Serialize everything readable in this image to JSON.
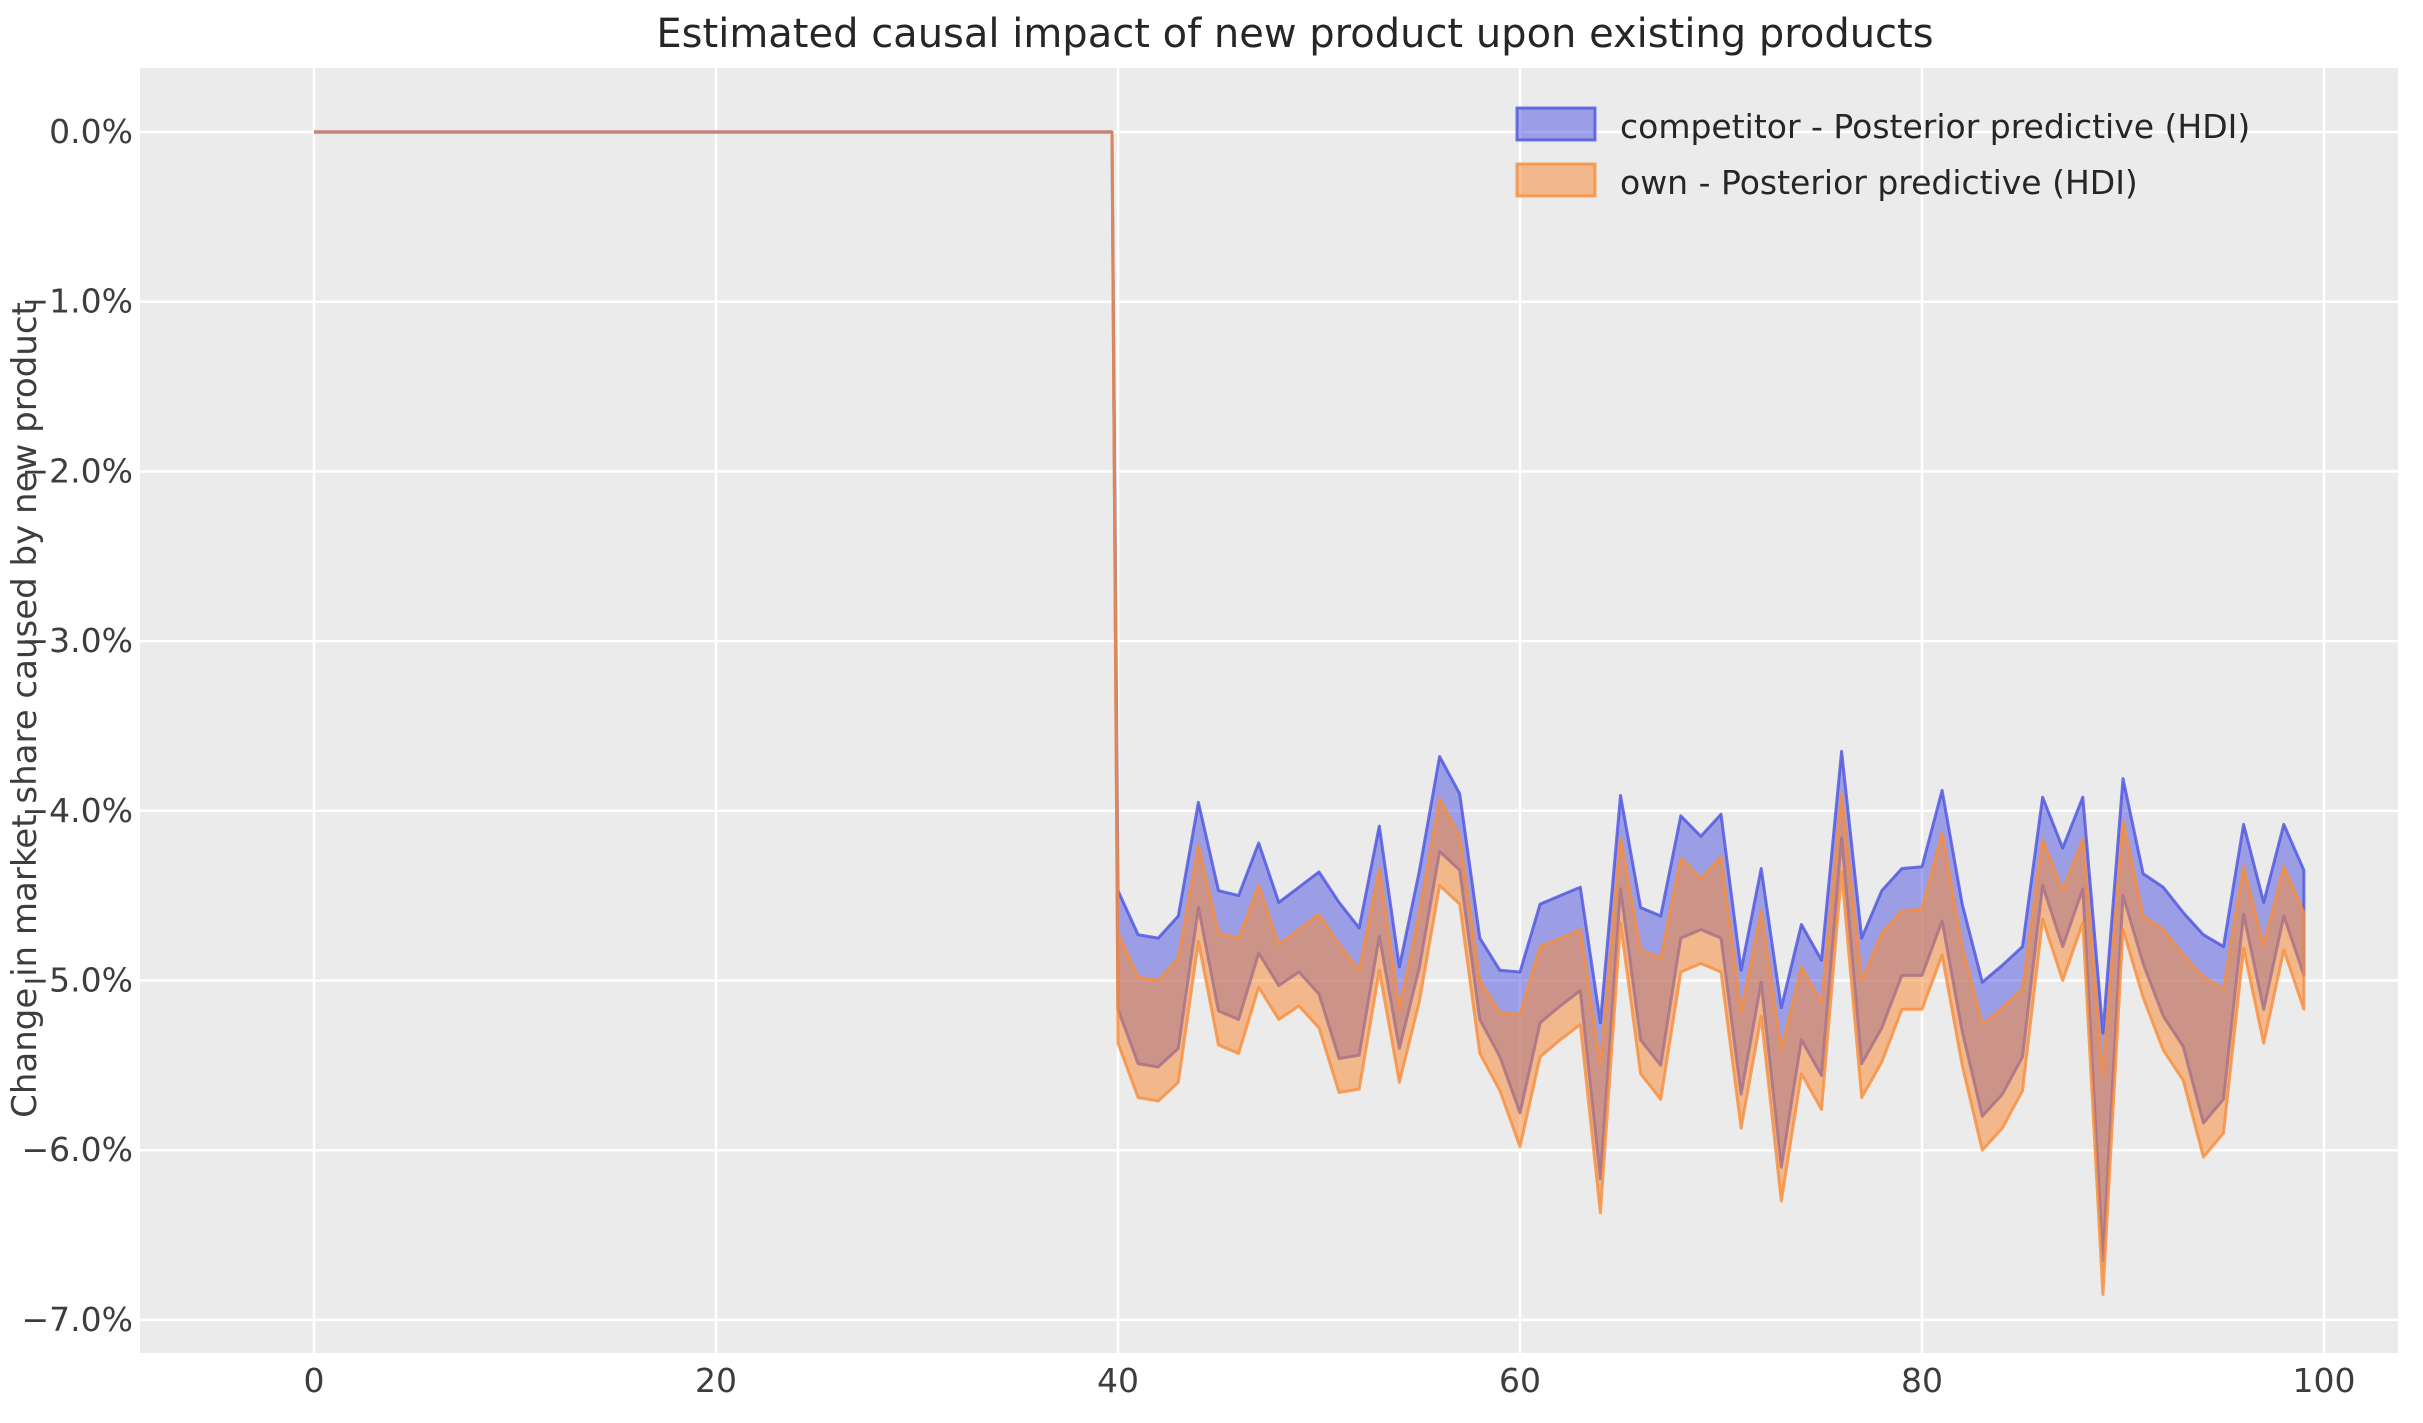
{
  "figure": {
    "background": "#ffffff",
    "plot_background": "#ebebeb",
    "grid_color": "#ffffff",
    "tick_text_color": "#3d3d3d",
    "title_color": "#262626"
  },
  "chart_data": {
    "type": "area",
    "title": "Estimated causal impact of new product upon existing products",
    "xlabel": "",
    "ylabel": "Change in market share caused by new product",
    "grid": true,
    "legend_position": "upper right",
    "xlim": [
      -8.7,
      103.7
    ],
    "ylim": [
      -7.2,
      0.38
    ],
    "xticks": {
      "values": [
        0,
        20,
        40,
        60,
        80,
        100
      ],
      "labels": [
        "0",
        "20",
        "40",
        "60",
        "80",
        "100"
      ]
    },
    "yticks": {
      "values": [
        0,
        -1,
        -2,
        -3,
        -4,
        -5,
        -6,
        -7
      ],
      "labels": [
        "0.0%",
        "−1.0%",
        "−2.0%",
        "−3.0%",
        "−4.0%",
        "−5.0%",
        "−6.0%",
        "−7.0%"
      ]
    },
    "pre_period": {
      "x_start": 0,
      "x_end": 39.7,
      "value": 0,
      "line_color": "#c4837f"
    },
    "x_post": [
      39.7,
      40,
      41,
      42,
      43,
      44,
      45,
      46,
      47,
      48,
      49,
      50,
      51,
      52,
      53,
      54,
      55,
      56,
      57,
      58,
      59,
      60,
      61,
      62,
      63,
      64,
      65,
      66,
      67,
      68,
      69,
      70,
      71,
      72,
      73,
      74,
      75,
      76,
      77,
      78,
      79,
      80,
      81,
      82,
      83,
      84,
      85,
      86,
      87,
      88,
      89,
      90,
      91,
      92,
      93,
      94,
      95,
      96,
      97,
      98,
      99
    ],
    "series": [
      {
        "name": "competitor - Posterior predictive (HDI)",
        "fill": "rgba(76,82,224,0.5)",
        "stroke": "rgba(76,82,224,0.8)",
        "upper": [
          0,
          -4.47,
          -4.73,
          -4.75,
          -4.62,
          -3.95,
          -4.47,
          -4.5,
          -4.19,
          -4.54,
          -4.45,
          -4.36,
          -4.54,
          -4.69,
          -4.09,
          -4.92,
          -4.35,
          -3.68,
          -3.9,
          -4.75,
          -4.94,
          -4.95,
          -4.55,
          -4.5,
          -4.45,
          -5.25,
          -3.91,
          -4.57,
          -4.62,
          -4.03,
          -4.15,
          -4.02,
          -4.94,
          -4.34,
          -5.16,
          -4.67,
          -4.88,
          -3.65,
          -4.75,
          -4.47,
          -4.34,
          -4.33,
          -3.88,
          -4.55,
          -5.01,
          -4.91,
          -4.8,
          -3.92,
          -4.22,
          -3.92,
          -5.31,
          -3.81,
          -4.37,
          -4.45,
          -4.6,
          -4.73,
          -4.8,
          -4.08,
          -4.54,
          -4.08,
          -4.35
        ],
        "lower": [
          0,
          -5.17,
          -5.49,
          -5.51,
          -5.4,
          -4.57,
          -5.18,
          -5.23,
          -4.84,
          -5.03,
          -4.95,
          -5.08,
          -5.46,
          -5.44,
          -4.74,
          -5.4,
          -4.92,
          -4.24,
          -4.35,
          -5.23,
          -5.45,
          -5.78,
          -5.25,
          -5.15,
          -5.06,
          -6.17,
          -4.46,
          -5.35,
          -5.5,
          -4.75,
          -4.7,
          -4.75,
          -5.67,
          -5.01,
          -6.1,
          -5.35,
          -5.56,
          -4.16,
          -5.49,
          -5.28,
          -4.97,
          -4.97,
          -4.65,
          -5.3,
          -5.8,
          -5.67,
          -5.45,
          -4.44,
          -4.8,
          -4.46,
          -6.65,
          -4.5,
          -4.9,
          -5.21,
          -5.39,
          -5.84,
          -5.7,
          -4.61,
          -5.17,
          -4.62,
          -4.97
        ]
      },
      {
        "name": "own - Posterior predictive (HDI)",
        "fill": "rgba(250,138,52,0.52)",
        "stroke": "rgba(247,141,59,0.8)",
        "upper": [
          0,
          -4.72,
          -4.98,
          -5.0,
          -4.87,
          -4.2,
          -4.72,
          -4.75,
          -4.44,
          -4.79,
          -4.7,
          -4.61,
          -4.79,
          -4.94,
          -4.34,
          -5.17,
          -4.6,
          -3.93,
          -4.15,
          -5.0,
          -5.19,
          -5.2,
          -4.8,
          -4.75,
          -4.7,
          -5.5,
          -4.16,
          -4.82,
          -4.87,
          -4.28,
          -4.4,
          -4.27,
          -5.19,
          -4.59,
          -5.41,
          -4.92,
          -5.13,
          -3.9,
          -5.0,
          -4.72,
          -4.59,
          -4.58,
          -4.13,
          -4.8,
          -5.26,
          -5.16,
          -5.05,
          -4.17,
          -4.47,
          -4.17,
          -5.56,
          -4.06,
          -4.62,
          -4.7,
          -4.85,
          -4.98,
          -5.05,
          -4.33,
          -4.79,
          -4.33,
          -4.6
        ],
        "lower": [
          0,
          -5.37,
          -5.69,
          -5.71,
          -5.6,
          -4.77,
          -5.38,
          -5.43,
          -5.04,
          -5.23,
          -5.15,
          -5.28,
          -5.66,
          -5.64,
          -4.94,
          -5.6,
          -5.12,
          -4.44,
          -4.55,
          -5.43,
          -5.65,
          -5.98,
          -5.45,
          -5.35,
          -5.26,
          -6.37,
          -4.66,
          -5.55,
          -5.7,
          -4.95,
          -4.9,
          -4.95,
          -5.87,
          -5.21,
          -6.3,
          -5.55,
          -5.76,
          -4.36,
          -5.69,
          -5.48,
          -5.17,
          -5.17,
          -4.85,
          -5.5,
          -6.0,
          -5.87,
          -5.65,
          -4.64,
          -5.0,
          -4.66,
          -6.85,
          -4.7,
          -5.1,
          -5.41,
          -5.59,
          -6.04,
          -5.9,
          -4.81,
          -5.37,
          -4.82,
          -5.17
        ]
      }
    ]
  }
}
